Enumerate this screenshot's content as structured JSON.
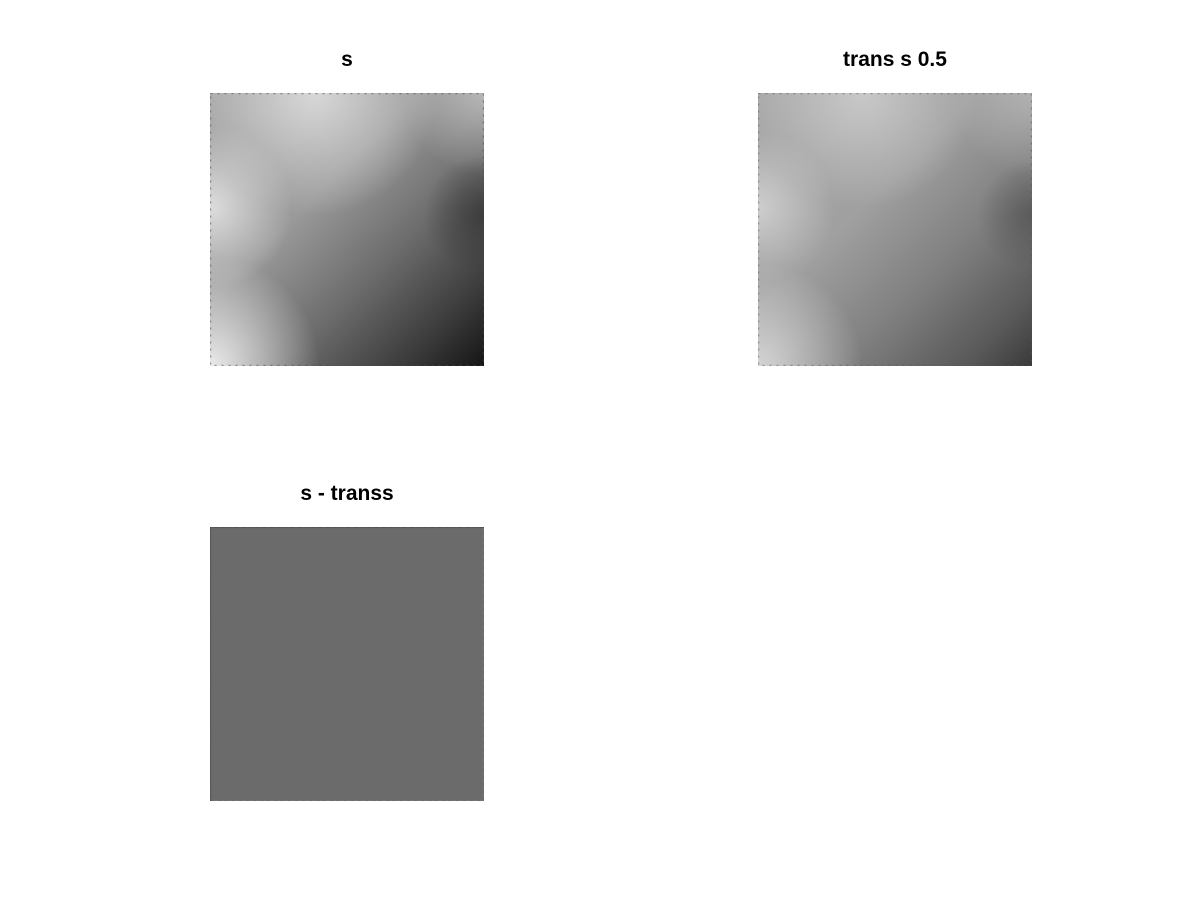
{
  "chart_data": [
    {
      "type": "heatmap",
      "title": "s",
      "colormap": "gray",
      "axis": "off",
      "grid": false,
      "colors": {
        "brightest": "#eeeeee",
        "mid": "#8e8e8e",
        "darkest": "#151515"
      }
    },
    {
      "type": "heatmap",
      "title": "trans s 0.5",
      "colormap": "gray",
      "axis": "off",
      "grid": false,
      "colors": {
        "brightest": "#dcdcdc",
        "mid": "#8f8f8f",
        "darkest": "#3a3a3a"
      }
    },
    {
      "type": "heatmap",
      "title": "s - transs",
      "colormap": "gray",
      "axis": "off",
      "grid": false,
      "colors": {
        "fill": "#6b6b6b",
        "edge": "#7a7a7a"
      }
    }
  ]
}
